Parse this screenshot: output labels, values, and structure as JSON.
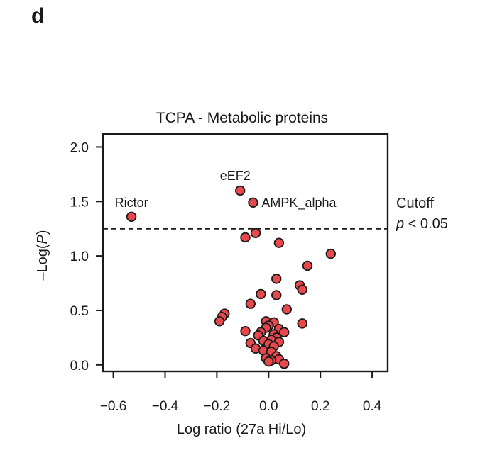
{
  "panel": {
    "letter": "d"
  },
  "chart_data": {
    "type": "scatter",
    "title": "TCPA - Metabolic proteins",
    "xlabel": "Log ratio (27a Hi/Lo)",
    "ylabel_prefix": "–Log(",
    "ylabel_var": "P",
    "ylabel_suffix": ")",
    "xlim": [
      -0.64,
      0.46
    ],
    "ylim": [
      -0.06,
      2.12
    ],
    "xticks": [
      -0.6,
      -0.4,
      -0.2,
      0.0,
      0.2,
      0.4
    ],
    "xtick_labels": [
      "−0.6",
      "−0.4",
      "−0.2",
      "0.0",
      "0.2",
      "0.4"
    ],
    "yticks": [
      0.0,
      0.5,
      1.0,
      1.5,
      2.0
    ],
    "ytick_labels": [
      "0.0",
      "0.5",
      "1.0",
      "1.5",
      "2.0"
    ],
    "grid": false,
    "point_color": "#e8474b",
    "point_edge_color": "#1a1a1a",
    "cutoff": {
      "y": 1.25,
      "label_line1": "Cutoff",
      "label_var": "p",
      "label_rest": " < 0.05"
    },
    "annotations": [
      {
        "label": "Rictor",
        "x": -0.53,
        "y": 1.36
      },
      {
        "label": "eEF2",
        "x": -0.11,
        "y": 1.6
      },
      {
        "label": "AMPK_alpha",
        "x": -0.06,
        "y": 1.49
      }
    ],
    "points": [
      {
        "x": -0.53,
        "y": 1.36
      },
      {
        "x": -0.11,
        "y": 1.6
      },
      {
        "x": -0.06,
        "y": 1.49
      },
      {
        "x": -0.09,
        "y": 1.17
      },
      {
        "x": -0.05,
        "y": 1.21
      },
      {
        "x": 0.04,
        "y": 1.12
      },
      {
        "x": 0.24,
        "y": 1.02
      },
      {
        "x": 0.15,
        "y": 0.91
      },
      {
        "x": 0.03,
        "y": 0.79
      },
      {
        "x": 0.12,
        "y": 0.73
      },
      {
        "x": 0.13,
        "y": 0.69
      },
      {
        "x": -0.03,
        "y": 0.65
      },
      {
        "x": 0.03,
        "y": 0.64
      },
      {
        "x": -0.07,
        "y": 0.56
      },
      {
        "x": 0.07,
        "y": 0.51
      },
      {
        "x": -0.17,
        "y": 0.47
      },
      {
        "x": -0.18,
        "y": 0.44
      },
      {
        "x": -0.19,
        "y": 0.4
      },
      {
        "x": -0.01,
        "y": 0.4
      },
      {
        "x": 0.02,
        "y": 0.39
      },
      {
        "x": 0.13,
        "y": 0.38
      },
      {
        "x": 0.0,
        "y": 0.36
      },
      {
        "x": -0.01,
        "y": 0.34
      },
      {
        "x": 0.04,
        "y": 0.33
      },
      {
        "x": -0.09,
        "y": 0.31
      },
      {
        "x": -0.03,
        "y": 0.3
      },
      {
        "x": 0.06,
        "y": 0.3
      },
      {
        "x": 0.02,
        "y": 0.28
      },
      {
        "x": -0.04,
        "y": 0.27
      },
      {
        "x": 0.03,
        "y": 0.25
      },
      {
        "x": 0.01,
        "y": 0.23
      },
      {
        "x": -0.02,
        "y": 0.22
      },
      {
        "x": 0.04,
        "y": 0.21
      },
      {
        "x": -0.07,
        "y": 0.2
      },
      {
        "x": 0.0,
        "y": 0.19
      },
      {
        "x": 0.02,
        "y": 0.17
      },
      {
        "x": -0.05,
        "y": 0.15
      },
      {
        "x": -0.02,
        "y": 0.13
      },
      {
        "x": 0.01,
        "y": 0.12
      },
      {
        "x": 0.03,
        "y": 0.08
      },
      {
        "x": -0.01,
        "y": 0.06
      },
      {
        "x": 0.04,
        "y": 0.05
      },
      {
        "x": 0.01,
        "y": 0.04
      },
      {
        "x": 0.0,
        "y": 0.03
      },
      {
        "x": 0.06,
        "y": 0.01
      }
    ]
  }
}
